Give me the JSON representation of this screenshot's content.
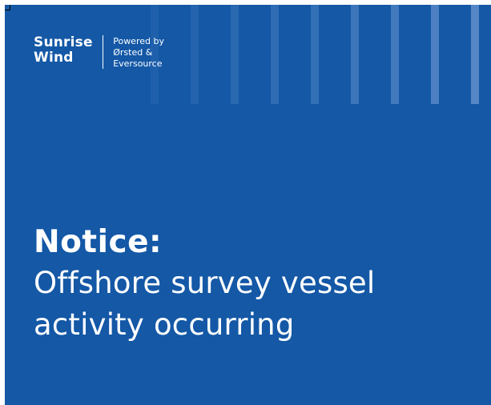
{
  "brand": {
    "line1": "Sunrise",
    "line2": "Wind"
  },
  "powered_by": {
    "line1": "Powered by",
    "line2": "Ørsted &",
    "line3": "Eversource"
  },
  "headline": {
    "label": "Notice:",
    "line1": "Offshore survey vessel",
    "line2": "activity occurring"
  },
  "colors": {
    "background": "#1458a6",
    "text": "#ffffff",
    "stripe": "#6f9ad3"
  }
}
